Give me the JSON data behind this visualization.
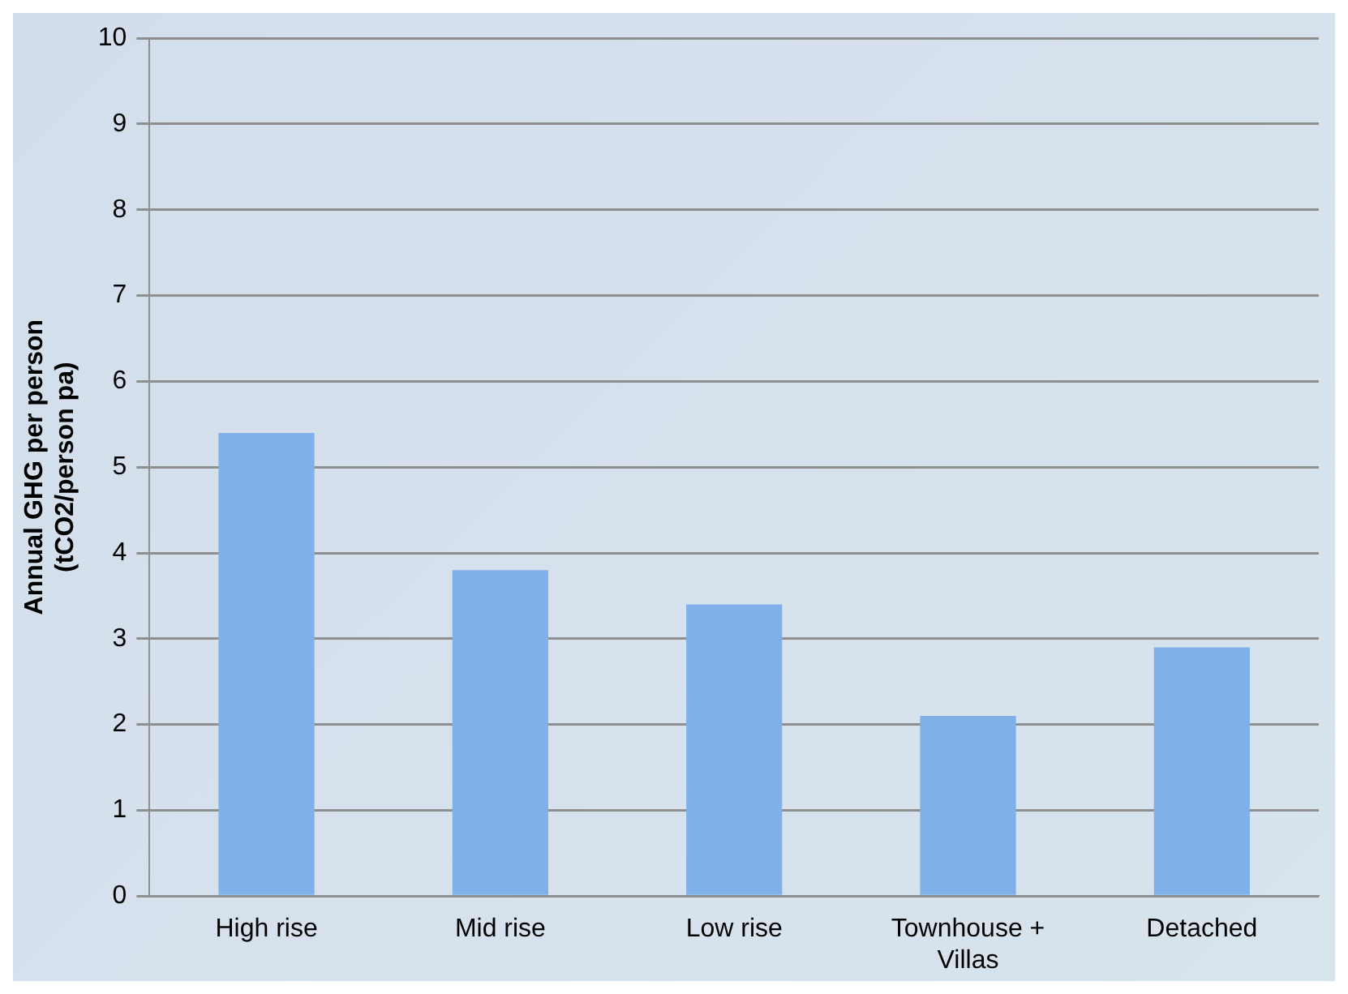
{
  "chart_data": {
    "type": "bar",
    "ylabel": "Annual GHG per person (tCO2/person pa)",
    "categories": [
      "High rise",
      "Mid rise",
      "Low rise",
      "Townhouse + Villas",
      "Detached"
    ],
    "values": [
      5.4,
      3.8,
      3.4,
      2.1,
      2.9
    ],
    "color": "#7fb0ea",
    "ylim": [
      0,
      10
    ],
    "yticks": [
      0,
      1,
      2,
      3,
      4,
      5,
      6,
      7,
      8,
      9,
      10
    ],
    "grid": "y",
    "legend": false
  }
}
